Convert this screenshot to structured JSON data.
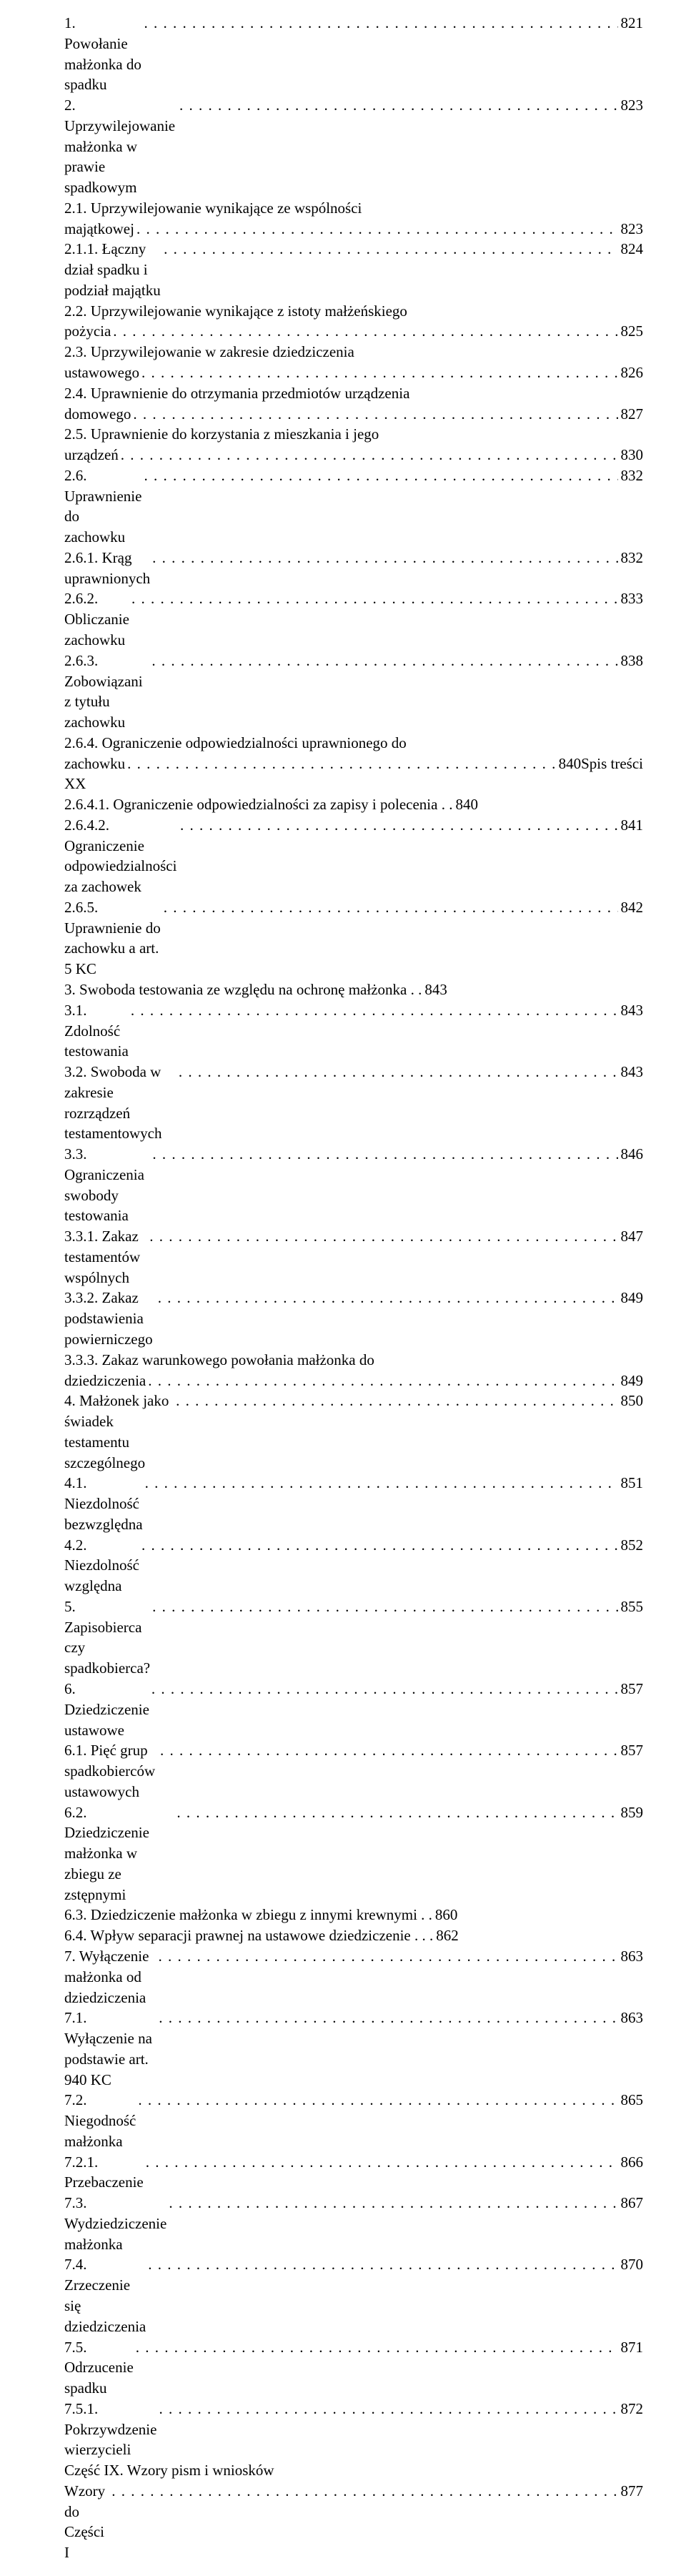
{
  "entries": [
    {
      "label": "1. Powołanie małżonka do spadku",
      "page": "821",
      "wrap": false
    },
    {
      "label": "2. Uprzywilejowanie małżonka w prawie spadkowym",
      "page": "823",
      "wrap": false
    },
    {
      "label_pre": "2.1. Uprzywilejowanie wynikające ze wspólności",
      "label_last": "majątkowej",
      "page": "823",
      "wrap": true
    },
    {
      "label": "2.1.1. Łączny dział spadku i podział majątku",
      "page": "824",
      "wrap": false
    },
    {
      "label_pre": "2.2. Uprzywilejowanie wynikające z istoty małżeńskiego",
      "label_last": "pożycia",
      "page": "825",
      "wrap": true
    },
    {
      "label_pre": "2.3. Uprzywilejowanie w zakresie dziedziczenia",
      "label_last": "ustawowego",
      "page": "826",
      "wrap": true
    },
    {
      "label_pre": "2.4. Uprawnienie do otrzymania przedmiotów urządzenia",
      "label_last": "domowego",
      "page": "827",
      "wrap": true
    },
    {
      "label_pre": "2.5. Uprawnienie do korzystania z mieszkania i jego",
      "label_last": "urządzeń",
      "page": "830",
      "wrap": true
    },
    {
      "label": "2.6. Uprawnienie do zachowku",
      "page": "832",
      "wrap": false
    },
    {
      "label": "2.6.1. Krąg uprawnionych",
      "page": "832",
      "wrap": false
    },
    {
      "label": "2.6.2. Obliczanie zachowku",
      "page": "833",
      "wrap": false
    },
    {
      "label": "2.6.3. Zobowiązani z tytułu zachowku",
      "page": "838",
      "wrap": false
    },
    {
      "label_pre": "2.6.4. Ograniczenie odpowiedzialności uprawnionego do",
      "label_last": "zachowku",
      "page": "840Spis treści",
      "wrap": true
    },
    {
      "label": "XX",
      "page": "",
      "wrap": false,
      "nodots": true
    },
    {
      "label": "2.6.4.1. Ograniczenie odpowiedzialności za zapisy i polecenia . .",
      "page": "840",
      "wrap": false,
      "nodots": true
    },
    {
      "label": "2.6.4.2. Ograniczenie odpowiedzialności za zachowek",
      "page": "841",
      "wrap": false
    },
    {
      "label": "2.6.5. Uprawnienie do zachowku a art. 5 KC",
      "page": "842",
      "wrap": false
    },
    {
      "label": "3. Swoboda testowania ze względu na ochronę małżonka . .",
      "page": "843",
      "wrap": false,
      "nodots": true
    },
    {
      "label": "3.1. Zdolność testowania",
      "page": "843",
      "wrap": false
    },
    {
      "label": "3.2. Swoboda w zakresie rozrządzeń testamentowych",
      "page": "843",
      "wrap": false
    },
    {
      "label": "3.3. Ograniczenia swobody testowania",
      "page": "846",
      "wrap": false
    },
    {
      "label": "3.3.1. Zakaz testamentów wspólnych",
      "page": "847",
      "wrap": false
    },
    {
      "label": "3.3.2. Zakaz podstawienia powierniczego",
      "page": "849",
      "wrap": false
    },
    {
      "label_pre": "3.3.3. Zakaz warunkowego powołania małżonka do",
      "label_last": "dziedziczenia",
      "page": "849",
      "wrap": true
    },
    {
      "label": "4. Małżonek jako świadek testamentu szczególnego",
      "page": "850",
      "wrap": false
    },
    {
      "label": "4.1. Niezdolność bezwzględna",
      "page": "851",
      "wrap": false
    },
    {
      "label": "4.2. Niezdolność względna",
      "page": "852",
      "wrap": false
    },
    {
      "label": "5. Zapisobierca czy spadkobierca?",
      "page": "855",
      "wrap": false
    },
    {
      "label": "6. Dziedziczenie ustawowe",
      "page": "857",
      "wrap": false
    },
    {
      "label": "6.1. Pięć grup spadkobierców ustawowych",
      "page": "857",
      "wrap": false
    },
    {
      "label": "6.2. Dziedziczenie małżonka w zbiegu ze zstępnymi",
      "page": "859",
      "wrap": false
    },
    {
      "label": "6.3. Dziedziczenie małżonka w zbiegu z innymi krewnymi . .",
      "page": "860",
      "wrap": false,
      "nodots": true
    },
    {
      "label": "6.4. Wpływ separacji prawnej na ustawowe dziedziczenie . . .",
      "page": "862",
      "wrap": false,
      "nodots": true
    },
    {
      "label": "7. Wyłączenie małżonka od dziedziczenia",
      "page": "863",
      "wrap": false
    },
    {
      "label": "7.1. Wyłączenie na podstawie art. 940 KC",
      "page": "863",
      "wrap": false
    },
    {
      "label": "7.2. Niegodność małżonka",
      "page": "865",
      "wrap": false
    },
    {
      "label": "7.2.1. Przebaczenie",
      "page": "866",
      "wrap": false
    },
    {
      "label": "7.3. Wydziedziczenie małżonka",
      "page": "867",
      "wrap": false
    },
    {
      "label": "7.4. Zrzeczenie się dziedziczenia",
      "page": "870",
      "wrap": false
    },
    {
      "label": "7.5. Odrzucenie spadku",
      "page": "871",
      "wrap": false
    },
    {
      "label": "7.5.1. Pokrzywdzenie wierzycieli",
      "page": "872",
      "wrap": false
    },
    {
      "label": "Część IX. Wzory pism i wniosków",
      "page": "",
      "wrap": false,
      "nodots": true
    },
    {
      "label": "Wzory do Części I",
      "page": "877",
      "wrap": false
    }
  ]
}
